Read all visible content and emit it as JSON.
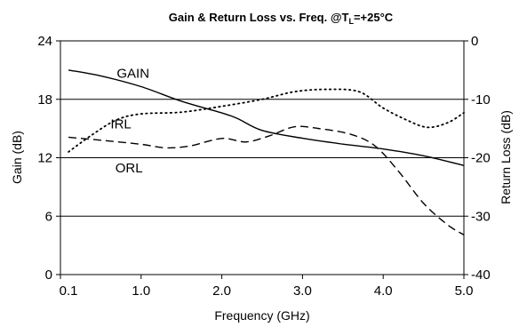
{
  "chart_data": {
    "type": "line",
    "title": {
      "prefix": "Gain & Return Loss vs. Freq. @T",
      "subscript": "L",
      "suffix": "=+25°C"
    },
    "xlabel": "Frequency (GHz)",
    "ylabel_left": "Gain (dB)",
    "ylabel_right": "Return Loss (dB)",
    "xlim": [
      0,
      5
    ],
    "xticks": [
      0.1,
      1.0,
      2.0,
      3.0,
      4.0,
      5.0
    ],
    "xtick_labels": [
      "0.1",
      "1.0",
      "2.0",
      "3.0",
      "4.0",
      "5.0"
    ],
    "ylim_left": [
      0,
      24
    ],
    "yticks_left": [
      0,
      6,
      12,
      18,
      24
    ],
    "ytick_labels_left": [
      "0",
      "6",
      "12",
      "18",
      "24"
    ],
    "ylim_right": [
      -40,
      0
    ],
    "yticks_right": [
      -40,
      -30,
      -20,
      -10,
      0
    ],
    "ytick_labels_right": [
      "-40",
      "-30",
      "-20",
      "-10",
      "0"
    ],
    "grid": "horizontal",
    "series": [
      {
        "name": "GAIN",
        "axis": "left",
        "style": "solid",
        "x": [
          0.1,
          0.5,
          1.0,
          1.5,
          2.0,
          2.2,
          2.5,
          3.0,
          3.5,
          4.0,
          4.5,
          5.0
        ],
        "y": [
          21.0,
          20.4,
          19.3,
          17.8,
          16.6,
          16.0,
          14.8,
          14.0,
          13.4,
          12.9,
          12.2,
          11.2
        ]
      },
      {
        "name": "IRL",
        "axis": "right",
        "style": "dotted",
        "x": [
          0.1,
          0.4,
          0.7,
          1.0,
          1.5,
          2.0,
          2.5,
          2.9,
          3.3,
          3.7,
          4.0,
          4.3,
          4.55,
          4.8,
          5.0
        ],
        "y": [
          -19.0,
          -16.0,
          -13.5,
          -12.5,
          -12.2,
          -11.2,
          -10.0,
          -8.7,
          -8.3,
          -8.7,
          -11.5,
          -13.6,
          -14.8,
          -14.0,
          -12.3
        ]
      },
      {
        "name": "ORL",
        "axis": "right",
        "style": "dashed",
        "x": [
          0.1,
          0.5,
          1.0,
          1.3,
          1.6,
          2.0,
          2.3,
          2.6,
          2.9,
          3.2,
          3.6,
          3.9,
          4.2,
          4.5,
          4.8,
          5.0
        ],
        "y": [
          -16.5,
          -17.0,
          -17.7,
          -18.3,
          -18.0,
          -16.7,
          -17.3,
          -16.2,
          -14.7,
          -15.0,
          -16.0,
          -18.0,
          -22.5,
          -27.8,
          -31.5,
          -33.2
        ]
      }
    ],
    "annotations": [
      {
        "text": "GAIN",
        "x": 0.9,
        "y": 20.2,
        "axis": "left"
      },
      {
        "text": "IRL",
        "x": 0.75,
        "y": 15.0,
        "axis": "left"
      },
      {
        "text": "ORL",
        "x": 0.85,
        "y": 10.5,
        "axis": "left"
      }
    ]
  }
}
